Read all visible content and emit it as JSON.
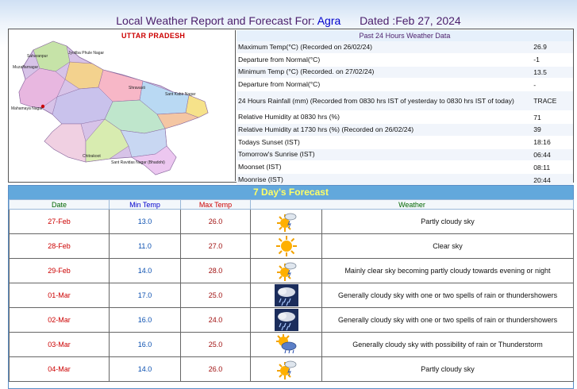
{
  "header": {
    "prefix": "Local Weather Report and Forecast For:",
    "city": "Agra",
    "dated": "Dated :Feb 27, 2024"
  },
  "map": {
    "state_label": "UTTAR PRADESH",
    "district_labels": [
      "Saharanpur",
      "Muzaffarnagar",
      "Jyotiba Phule Nagar",
      "Shravasti",
      "Sant Kabir Nagar",
      "Mahamaya Nagar",
      "Chitrakoot",
      "Sant Ravidas Nagar (Bhadohi)"
    ]
  },
  "past24": {
    "title": "Past 24 Hours Weather Data",
    "rows": [
      {
        "label": "Maximum Temp(°C) (Recorded on 26/02/24)",
        "value": "26.9"
      },
      {
        "label": "Departure from Normal(°C)",
        "value": "-1"
      },
      {
        "label": "Minimum Temp (°C) (Recorded. on 27/02/24)",
        "value": "13.5"
      },
      {
        "label": "Departure from Normal(°C)",
        "value": "-"
      },
      {
        "label": "24 Hours Rainfall (mm) (Recorded from 0830 hrs IST of yesterday to 0830 hrs IST of today)",
        "value": "TRACE"
      },
      {
        "label": "Relative Humidity at 0830 hrs (%)",
        "value": "71"
      },
      {
        "label": "Relative Humidity at 1730 hrs (%) (Recorded on 26/02/24)",
        "value": "39"
      },
      {
        "label": "Todays Sunset (IST)",
        "value": "18:16"
      },
      {
        "label": "Tomorrow's Sunrise (IST)",
        "value": "06:44"
      },
      {
        "label": "Moonset (IST)",
        "value": "08:11"
      },
      {
        "label": "Moonrise (IST)",
        "value": "20:44"
      }
    ]
  },
  "forecast": {
    "title": "7 Day's Forecast",
    "headers": {
      "date": "Date",
      "min": "Min Temp",
      "max": "Max Temp",
      "weather": "Weather"
    },
    "rows": [
      {
        "date": "27-Feb",
        "min": "13.0",
        "max": "26.0",
        "icon": "partly-cloudy-icon",
        "weather": "Partly cloudy sky"
      },
      {
        "date": "28-Feb",
        "min": "11.0",
        "max": "27.0",
        "icon": "sun-icon",
        "weather": "Clear sky"
      },
      {
        "date": "29-Feb",
        "min": "14.0",
        "max": "28.0",
        "icon": "partly-cloudy-icon",
        "weather": "Mainly clear sky becoming partly cloudy towards evening or night"
      },
      {
        "date": "01-Mar",
        "min": "17.0",
        "max": "25.0",
        "icon": "rain-cloud-icon",
        "weather": "Generally cloudy sky with one or two spells of rain or thundershowers"
      },
      {
        "date": "02-Mar",
        "min": "16.0",
        "max": "24.0",
        "icon": "rain-cloud-icon",
        "weather": "Generally cloudy sky with one or two spells of rain or thundershowers"
      },
      {
        "date": "03-Mar",
        "min": "16.0",
        "max": "25.0",
        "icon": "sun-cloud-rain-icon",
        "weather": "Generally cloudy sky with possibility of rain or Thunderstorm"
      },
      {
        "date": "04-Mar",
        "min": "14.0",
        "max": "26.0",
        "icon": "partly-cloudy-icon",
        "weather": "Partly cloudy sky"
      }
    ]
  },
  "colors": {
    "header_text": "#4b1e6b",
    "city": "#0000cc",
    "forecast_bar": "#62a8dc",
    "forecast_title": "#ffff66"
  }
}
